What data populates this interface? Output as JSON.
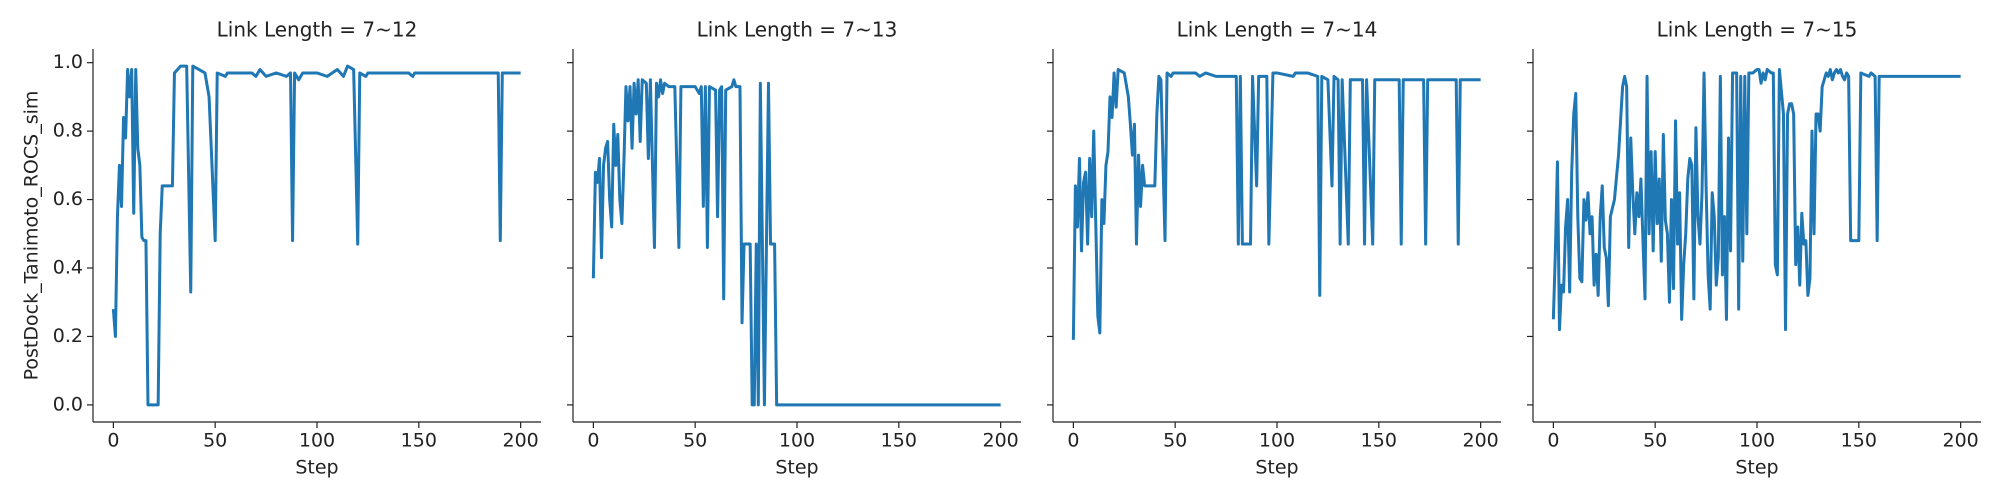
{
  "chart_data": [
    {
      "type": "line",
      "title": "Link Length = 7~12",
      "xlabel": "Step",
      "ylabel": "PostDock_Tanimoto_ROCS_sim",
      "color": "#1f77b4",
      "xlim": [
        -10,
        210
      ],
      "ylim": [
        -0.05,
        1.04
      ],
      "xticks": [
        0,
        50,
        100,
        150,
        200
      ],
      "yticks": [
        {
          "value": 0,
          "label": "0.0"
        },
        0.2,
        0.4,
        0.6,
        0.8,
        {
          "value": 1,
          "label": "1.0"
        }
      ],
      "x": [
        0,
        1,
        2,
        3,
        4,
        5,
        6,
        7,
        8,
        9,
        10,
        11,
        12,
        13,
        14,
        15,
        16,
        17,
        22,
        23,
        24,
        29,
        30,
        33,
        36,
        38,
        39,
        45,
        47,
        50,
        51,
        55,
        56,
        68,
        70,
        72,
        75,
        80,
        85,
        87,
        88,
        89,
        91,
        93,
        100,
        105,
        110,
        113,
        115,
        118,
        120,
        121,
        124,
        125,
        145,
        147,
        148,
        189,
        190,
        191,
        200
      ],
      "values": [
        0.28,
        0.2,
        0.55,
        0.7,
        0.58,
        0.84,
        0.78,
        0.98,
        0.9,
        0.98,
        0.56,
        0.98,
        0.75,
        0.7,
        0.49,
        0.48,
        0.48,
        0,
        0,
        0.5,
        0.64,
        0.64,
        0.97,
        0.99,
        0.99,
        0.33,
        0.99,
        0.97,
        0.9,
        0.48,
        0.97,
        0.96,
        0.97,
        0.97,
        0.96,
        0.98,
        0.96,
        0.97,
        0.96,
        0.97,
        0.48,
        0.97,
        0.95,
        0.97,
        0.97,
        0.96,
        0.98,
        0.96,
        0.99,
        0.98,
        0.47,
        0.97,
        0.96,
        0.97,
        0.97,
        0.96,
        0.97,
        0.97,
        0.48,
        0.97,
        0.97
      ]
    },
    {
      "type": "line",
      "title": "Link Length = 7~13",
      "xlabel": "Step",
      "color": "#1f77b4",
      "xlim": [
        -10,
        210
      ],
      "ylim": [
        -0.05,
        1.04
      ],
      "xticks": [
        0,
        50,
        100,
        150,
        200
      ],
      "yticks": [
        0,
        0.2,
        0.4,
        0.6,
        0.8,
        1
      ],
      "x": [
        0,
        1,
        2,
        3,
        4,
        5,
        6,
        7,
        8,
        9,
        10,
        11,
        12,
        13,
        14,
        15,
        16,
        17,
        18,
        19,
        20,
        21,
        22,
        23,
        24,
        26,
        27,
        28,
        30,
        31,
        32,
        33,
        34,
        35,
        37,
        40,
        42,
        43,
        50,
        52,
        53,
        54,
        55,
        56,
        57,
        60,
        61,
        62,
        63,
        64,
        65,
        68,
        69,
        70,
        72,
        73,
        74,
        77,
        78,
        79,
        80,
        81,
        82,
        84,
        85,
        86,
        87,
        89,
        90,
        200
      ],
      "values": [
        0.37,
        0.68,
        0.65,
        0.72,
        0.43,
        0.7,
        0.75,
        0.77,
        0.6,
        0.52,
        0.82,
        0.7,
        0.79,
        0.6,
        0.53,
        0.71,
        0.93,
        0.83,
        0.93,
        0.75,
        0.94,
        0.85,
        0.95,
        0.77,
        0.95,
        0.94,
        0.72,
        0.95,
        0.46,
        0.94,
        0.9,
        0.95,
        0.91,
        0.94,
        0.93,
        0.93,
        0.46,
        0.93,
        0.93,
        0.91,
        0.93,
        0.58,
        0.93,
        0.46,
        0.93,
        0.92,
        0.55,
        0.92,
        0.93,
        0.31,
        0.92,
        0.93,
        0.95,
        0.93,
        0.93,
        0.24,
        0.47,
        0.47,
        0,
        0,
        0.47,
        0,
        0.94,
        0,
        0.47,
        0.94,
        0.47,
        0.47,
        0,
        0
      ]
    },
    {
      "type": "line",
      "title": "Link Length = 7~14",
      "xlabel": "Step",
      "color": "#1f77b4",
      "xlim": [
        -10,
        210
      ],
      "ylim": [
        -0.05,
        1.04
      ],
      "xticks": [
        0,
        50,
        100,
        150,
        200
      ],
      "yticks": [
        0,
        0.2,
        0.4,
        0.6,
        0.8,
        1
      ],
      "x": [
        0,
        1,
        2,
        3,
        4,
        5,
        6,
        7,
        8,
        9,
        10,
        11,
        12,
        13,
        14,
        15,
        16,
        17,
        18,
        19,
        20,
        21,
        22,
        25,
        27,
        28,
        29,
        30,
        31,
        32,
        33,
        34,
        35,
        40,
        41,
        42,
        43,
        45,
        46,
        48,
        49,
        60,
        62,
        65,
        70,
        80,
        81,
        82,
        83,
        87,
        88,
        90,
        91,
        95,
        96,
        98,
        100,
        108,
        109,
        115,
        120,
        121,
        122,
        125,
        127,
        128,
        130,
        131,
        132,
        135,
        136,
        142,
        143,
        144,
        147,
        148,
        160,
        161,
        162,
        172,
        173,
        174,
        188,
        189,
        190,
        200
      ],
      "values": [
        0.19,
        0.64,
        0.52,
        0.72,
        0.45,
        0.65,
        0.68,
        0.47,
        0.72,
        0.55,
        0.8,
        0.53,
        0.26,
        0.21,
        0.6,
        0.53,
        0.7,
        0.74,
        0.9,
        0.84,
        0.97,
        0.87,
        0.98,
        0.97,
        0.9,
        0.82,
        0.73,
        0.82,
        0.47,
        0.73,
        0.58,
        0.7,
        0.64,
        0.64,
        0.85,
        0.96,
        0.95,
        0.48,
        0.97,
        0.96,
        0.97,
        0.97,
        0.96,
        0.97,
        0.96,
        0.96,
        0.47,
        0.96,
        0.47,
        0.47,
        0.96,
        0.64,
        0.96,
        0.96,
        0.47,
        0.97,
        0.97,
        0.96,
        0.97,
        0.97,
        0.96,
        0.32,
        0.96,
        0.95,
        0.64,
        0.96,
        0.95,
        0.47,
        0.95,
        0.47,
        0.95,
        0.95,
        0.47,
        0.95,
        0.47,
        0.95,
        0.95,
        0.47,
        0.95,
        0.95,
        0.47,
        0.95,
        0.95,
        0.47,
        0.95,
        0.95
      ]
    },
    {
      "type": "line",
      "title": "Link Length = 7~15",
      "xlabel": "Step",
      "color": "#1f77b4",
      "xlim": [
        -10,
        210
      ],
      "ylim": [
        -0.05,
        1.04
      ],
      "xticks": [
        0,
        50,
        100,
        150,
        200
      ],
      "yticks": [
        0,
        0.2,
        0.4,
        0.6,
        0.8,
        1
      ],
      "x": [
        0,
        1,
        2,
        3,
        4,
        5,
        6,
        7,
        8,
        9,
        10,
        11,
        12,
        13,
        14,
        15,
        16,
        17,
        18,
        19,
        20,
        21,
        22,
        23,
        24,
        25,
        26,
        27,
        28,
        30,
        32,
        34,
        35,
        36,
        37,
        38,
        39,
        40,
        41,
        42,
        43,
        44,
        45,
        46,
        47,
        48,
        49,
        50,
        51,
        52,
        53,
        54,
        55,
        56,
        57,
        58,
        59,
        60,
        61,
        62,
        63,
        64,
        65,
        66,
        67,
        68,
        69,
        70,
        71,
        72,
        73,
        74,
        75,
        76,
        77,
        78,
        79,
        80,
        81,
        82,
        83,
        84,
        85,
        86,
        87,
        88,
        90,
        91,
        92,
        93,
        94,
        95,
        96,
        98,
        100,
        101,
        102,
        103,
        104,
        105,
        107,
        108,
        109,
        110,
        111,
        113,
        114,
        115,
        116,
        117,
        118,
        119,
        120,
        121,
        122,
        123,
        124,
        125,
        126,
        127,
        128,
        129,
        130,
        131,
        132,
        133,
        134,
        135,
        136,
        137,
        138,
        139,
        140,
        141,
        142,
        143,
        144,
        145,
        146,
        150,
        151,
        155,
        156,
        158,
        159,
        160,
        200
      ],
      "values": [
        0.25,
        0.45,
        0.71,
        0.22,
        0.35,
        0.33,
        0.52,
        0.6,
        0.33,
        0.68,
        0.85,
        0.91,
        0.55,
        0.37,
        0.36,
        0.6,
        0.54,
        0.62,
        0.5,
        0.55,
        0.35,
        0.44,
        0.32,
        0.55,
        0.64,
        0.46,
        0.43,
        0.29,
        0.55,
        0.6,
        0.73,
        0.93,
        0.96,
        0.93,
        0.46,
        0.78,
        0.62,
        0.5,
        0.62,
        0.55,
        0.66,
        0.48,
        0.31,
        0.96,
        0.5,
        0.74,
        0.45,
        0.74,
        0.53,
        0.66,
        0.42,
        0.79,
        0.54,
        0.5,
        0.3,
        0.6,
        0.34,
        0.83,
        0.47,
        0.62,
        0.25,
        0.41,
        0.5,
        0.66,
        0.72,
        0.7,
        0.31,
        0.81,
        0.55,
        0.47,
        0.62,
        0.97,
        0.64,
        0.38,
        0.28,
        0.62,
        0.55,
        0.35,
        0.43,
        0.96,
        0.38,
        0.55,
        0.25,
        0.78,
        0.45,
        0.97,
        0.97,
        0.28,
        0.96,
        0.42,
        0.96,
        0.5,
        0.97,
        0.97,
        0.98,
        0.98,
        0.94,
        0.97,
        0.95,
        0.98,
        0.97,
        0.97,
        0.41,
        0.38,
        0.98,
        0.85,
        0.22,
        0.85,
        0.88,
        0.88,
        0.85,
        0.41,
        0.52,
        0.35,
        0.56,
        0.47,
        0.48,
        0.32,
        0.37,
        0.8,
        0.5,
        0.85,
        0.85,
        0.8,
        0.93,
        0.95,
        0.97,
        0.96,
        0.98,
        0.95,
        0.97,
        0.98,
        0.97,
        0.98,
        0.96,
        0.95,
        0.97,
        0.96,
        0.48,
        0.48,
        0.97,
        0.96,
        0.97,
        0.96,
        0.48,
        0.96,
        0.96
      ]
    }
  ]
}
